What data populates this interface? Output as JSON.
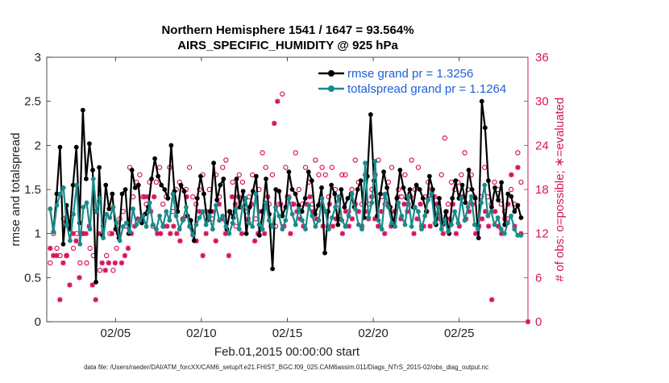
{
  "chart_data": {
    "type": "line",
    "title_line1": "Northern Hemisphere 1541 / 1647 = 93.564%",
    "title_line2": "AIRS_SPECIFIC_HUMIDITY @ 925 hPa",
    "xlabel": "Feb.01,2015 00:00:00 start",
    "ylabel_left": "rmse and totalspread",
    "ylabel_right": "# of obs: o=possible; ∗=evaluated",
    "footnote": "data file: /Users/raeder/DAI/ATM_forcXX/CAM6_setup/f.e21.FHIST_BGC.f09_025.CAM6assim.011/Diags_NTrS_2015-02/obs_diag_output.nc",
    "x_range_days": [
      1.0,
      29.0
    ],
    "ylim_left": [
      0,
      3
    ],
    "ylim_right": [
      0,
      36
    ],
    "x_ticks": [
      {
        "day": 5,
        "label": "02/05"
      },
      {
        "day": 10,
        "label": "02/10"
      },
      {
        "day": 15,
        "label": "02/15"
      },
      {
        "day": 20,
        "label": "02/20"
      },
      {
        "day": 25,
        "label": "02/25"
      }
    ],
    "y_ticks_left": [
      "0",
      "0.5",
      "1",
      "1.5",
      "2",
      "2.5",
      "3"
    ],
    "y_ticks_right": [
      "0",
      "6",
      "12",
      "18",
      "24",
      "30",
      "36"
    ],
    "colors": {
      "rmse": "#000000",
      "totalspread": "#1a8a8a",
      "obs": "#d6145f",
      "legend_text": "#1f5fd6"
    },
    "series": [
      {
        "name": "rmse grand pr = 1.3256",
        "axis": "left",
        "values": [
          1.28,
          1.02,
          1.45,
          1.98,
          0.88,
          1.32,
          1.05,
          1.55,
          1.98,
          1.12,
          2.4,
          1.62,
          2.02,
          1.72,
          0.45,
          1.75,
          0.98,
          1.55,
          1.28,
          1.45,
          1.05,
          0.95,
          1.45,
          1.5,
          1.0,
          1.72,
          1.52,
          1.55,
          1.12,
          1.22,
          1.3,
          1.62,
          1.85,
          1.65,
          1.55,
          1.5,
          1.4,
          2.0,
          1.48,
          1.25,
          1.55,
          1.48,
          1.2,
          1.15,
          0.92,
          1.4,
          1.65,
          1.45,
          1.15,
          1.25,
          1.8,
          1.38,
          1.55,
          1.62,
          1.05,
          1.25,
          1.18,
          1.62,
          1.3,
          1.48,
          1.0,
          1.3,
          1.48,
          1.65,
          0.98,
          1.25,
          1.62,
          1.22,
          0.6,
          1.5,
          1.48,
          1.2,
          1.3,
          1.7,
          1.5,
          1.45,
          1.32,
          1.25,
          1.4,
          1.7,
          1.6,
          1.22,
          1.32,
          1.52,
          0.78,
          1.25,
          1.55,
          1.45,
          1.1,
          1.5,
          1.3,
          1.4,
          1.45,
          1.3,
          1.5,
          1.6,
          1.18,
          1.65,
          2.35,
          1.6,
          1.2,
          1.45,
          1.7,
          1.52,
          1.3,
          1.1,
          1.4,
          1.72,
          1.52,
          1.4,
          1.5,
          1.3,
          1.55,
          1.5,
          1.4,
          1.25,
          1.65,
          1.5,
          1.1,
          1.4,
          1.1,
          1.25,
          1.0,
          1.4,
          1.6,
          1.4,
          1.55,
          1.35,
          1.72,
          1.5,
          1.4,
          0.95,
          2.5,
          2.2,
          1.6,
          1.3,
          1.52,
          1.38,
          1.58,
          1.1,
          1.45,
          1.42,
          1.25,
          1.32,
          1.18
        ]
      },
      {
        "name": "totalspread grand pr = 1.1264",
        "axis": "left",
        "values": [
          1.28,
          1.02,
          1.32,
          1.45,
          1.52,
          1.1,
          0.92,
          1.22,
          1.55,
          0.88,
          1.3,
          1.35,
          1.05,
          1.62,
          1.25,
          1.4,
          0.95,
          1.22,
          1.18,
          1.3,
          1.12,
          0.92,
          1.08,
          1.12,
          1.02,
          1.28,
          1.1,
          1.15,
          1.2,
          1.08,
          1.35,
          1.1,
          1.05,
          1.2,
          1.08,
          1.25,
          1.15,
          1.45,
          1.2,
          1.05,
          1.15,
          1.3,
          1.08,
          0.98,
          1.1,
          1.18,
          1.25,
          1.1,
          1.2,
          1.05,
          1.32,
          1.15,
          1.2,
          1.08,
          1.0,
          1.12,
          1.28,
          1.05,
          1.3,
          1.4,
          1.12,
          1.08,
          1.45,
          1.1,
          1.05,
          1.35,
          1.15,
          1.08,
          1.3,
          1.2,
          1.05,
          1.15,
          1.4,
          1.22,
          1.1,
          1.28,
          1.15,
          1.05,
          1.32,
          1.2,
          1.08,
          1.15,
          1.4,
          1.25,
          1.05,
          1.18,
          1.3,
          1.42,
          1.15,
          1.08,
          1.2,
          1.45,
          1.28,
          1.1,
          1.05,
          1.8,
          1.18,
          1.35,
          1.82,
          1.15,
          1.05,
          1.45,
          1.3,
          1.12,
          1.08,
          1.35,
          1.2,
          1.1,
          1.42,
          1.08,
          1.3,
          1.25,
          1.05,
          1.2,
          1.38,
          1.45,
          1.12,
          1.3,
          1.05,
          1.15,
          1.02,
          1.1,
          1.25,
          1.12,
          1.4,
          1.15,
          1.3,
          1.42,
          1.1,
          1.05,
          1.35,
          1.55,
          1.2,
          1.25,
          1.1,
          1.18,
          1.05,
          1.0,
          1.12,
          1.2,
          1.05,
          0.98,
          0.98
        ]
      }
    ],
    "obs_possible": {
      "name": "possible",
      "marker": "circle",
      "axis": "right",
      "values": [
        8,
        12,
        10,
        9,
        14,
        9,
        13,
        10,
        12,
        8,
        12,
        8,
        10,
        9,
        15,
        7,
        13,
        9,
        12,
        7,
        10,
        14,
        15,
        13,
        21,
        17,
        19,
        20,
        17,
        16,
        19,
        13,
        19,
        21,
        16,
        17,
        21,
        15,
        18,
        19,
        14,
        18,
        21,
        17,
        16,
        18,
        20,
        15,
        18,
        14,
        20,
        17,
        21,
        22,
        15,
        19,
        13,
        20,
        19,
        15,
        17,
        20,
        14,
        18,
        23,
        21,
        16,
        20,
        13,
        16,
        31,
        21,
        17,
        16,
        23,
        18,
        16,
        21,
        19,
        16,
        22,
        20,
        21,
        20,
        17,
        21,
        18,
        16,
        20,
        20,
        15,
        18,
        22,
        19,
        16,
        20,
        16,
        18,
        20,
        22,
        17,
        16,
        19,
        21,
        15,
        18,
        17,
        20,
        16,
        22,
        18,
        21,
        13,
        17,
        19,
        18,
        17,
        16,
        20,
        25,
        16,
        19,
        18,
        19,
        20,
        23,
        18,
        20,
        17,
        13,
        17,
        21,
        17,
        16,
        19,
        18,
        16,
        15,
        14,
        18,
        16,
        23,
        19
      ]
    },
    "obs_evaluated": {
      "name": "evaluated",
      "marker": "star",
      "axis": "right",
      "values": [
        10,
        9,
        9,
        3,
        8,
        9,
        5,
        12,
        11,
        6,
        12,
        12,
        13,
        5,
        3,
        12,
        8,
        7,
        8,
        12,
        8,
        12,
        8,
        9,
        10,
        12,
        13,
        14,
        14,
        17,
        17,
        15,
        17,
        12,
        12,
        13,
        13,
        12,
        13,
        12,
        11,
        14,
        17,
        13,
        12,
        11,
        15,
        9,
        12,
        15,
        15,
        11,
        16,
        14,
        12,
        9,
        17,
        16,
        17,
        12,
        16,
        14,
        16,
        11,
        12,
        15,
        12,
        17,
        13,
        27,
        30,
        16,
        13,
        17,
        12,
        16,
        15,
        14,
        13,
        16,
        17,
        15,
        14,
        16,
        13,
        15,
        16,
        13,
        14,
        14,
        12,
        15,
        13,
        14,
        16,
        15,
        13,
        15,
        14,
        17,
        14,
        13,
        15,
        12,
        16,
        13,
        15,
        17,
        14,
        16,
        15,
        17,
        12,
        14,
        16,
        13,
        15,
        13,
        17,
        16,
        14,
        12,
        15,
        14,
        16,
        12,
        13,
        17,
        14,
        15,
        16,
        12,
        13,
        14,
        15,
        13,
        3,
        15,
        13,
        12,
        14,
        16,
        20,
        13,
        21,
        12
      ]
    },
    "obs_last_evaluated_value": 0
  }
}
